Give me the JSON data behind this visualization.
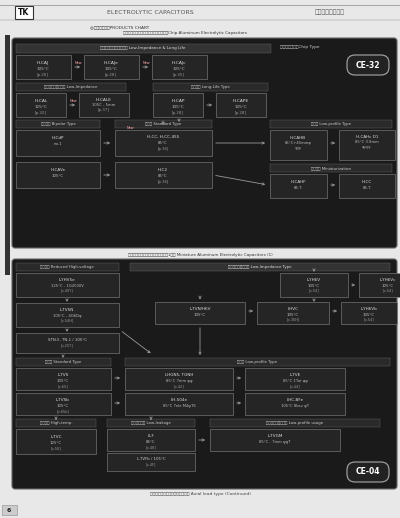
{
  "page_bg": "#e8e8e8",
  "section_bg": "#1a1a1a",
  "section_border": "#666666",
  "header_bar_bg": "#333333",
  "sub_bar_bg": "#2a2a2a",
  "box_bg": "#222222",
  "box_border": "#888888",
  "text_white": "#ffffff",
  "text_light": "#dddddd",
  "text_gray": "#bbbbbb",
  "text_dark": "#333333",
  "text_header": "#444444",
  "arrow_color": "#aaaaaa",
  "badge_bg": "#333333",
  "badge_border": "#aaaaaa",
  "tk_box_fc": "#ffffff",
  "tk_box_ec": "#333333",
  "page_num_bg": "#cccccc",
  "page_num_ec": "#999999",
  "line_color": "#888888"
}
